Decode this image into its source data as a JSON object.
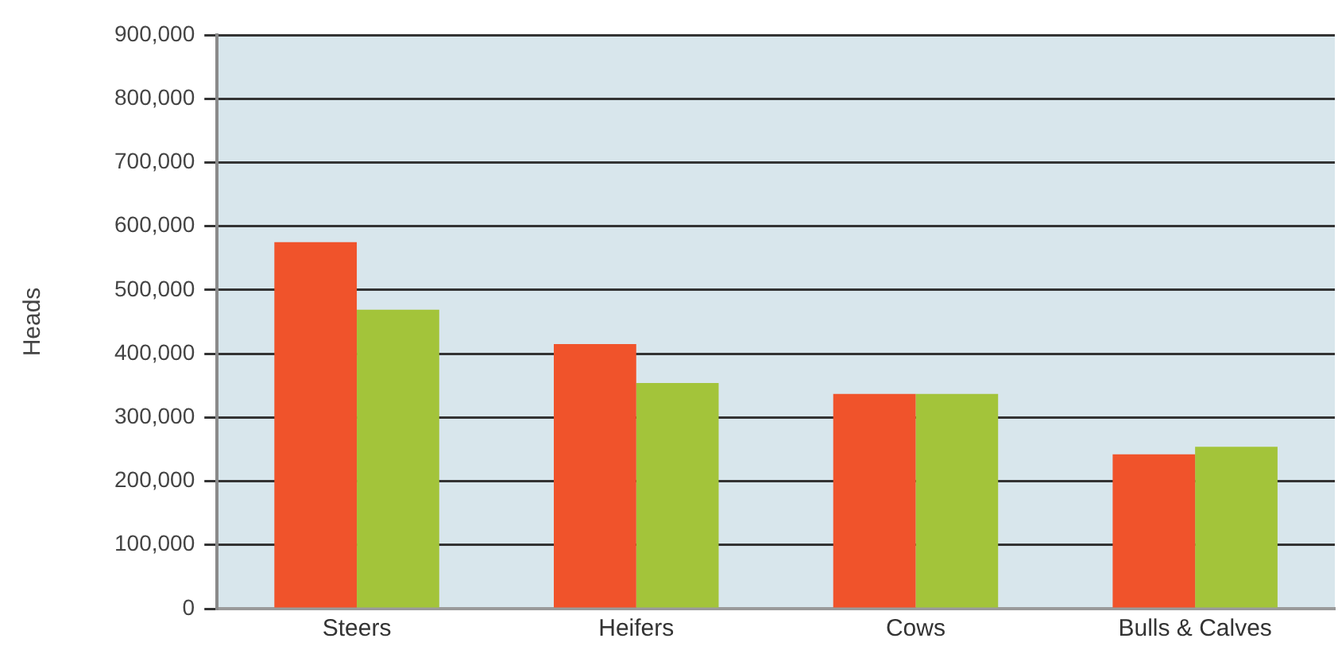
{
  "chart_data": {
    "type": "bar",
    "ylabel": "Heads",
    "categories": [
      "Steers",
      "Heifers",
      "Cows",
      "Bulls & Calves"
    ],
    "series": [
      {
        "color": "#f0532b",
        "values": [
          575000,
          415000,
          337000,
          242000
        ]
      },
      {
        "color": "#a3c43a",
        "values": [
          469000,
          354000,
          337000,
          254000
        ]
      }
    ],
    "ylim": [
      0,
      900000
    ],
    "yticks": [
      {
        "value": 0,
        "label": "0"
      },
      {
        "value": 100000,
        "label": "100,000"
      },
      {
        "value": 200000,
        "label": "200,000"
      },
      {
        "value": 300000,
        "label": "300,000"
      },
      {
        "value": 400000,
        "label": "400,000"
      },
      {
        "value": 500000,
        "label": "500,000"
      },
      {
        "value": 600000,
        "label": "600,000"
      },
      {
        "value": 700000,
        "label": "700,000"
      },
      {
        "value": 800000,
        "label": "800,000"
      },
      {
        "value": 900000,
        "label": "900,000"
      }
    ],
    "grid": "y",
    "legend": false
  }
}
